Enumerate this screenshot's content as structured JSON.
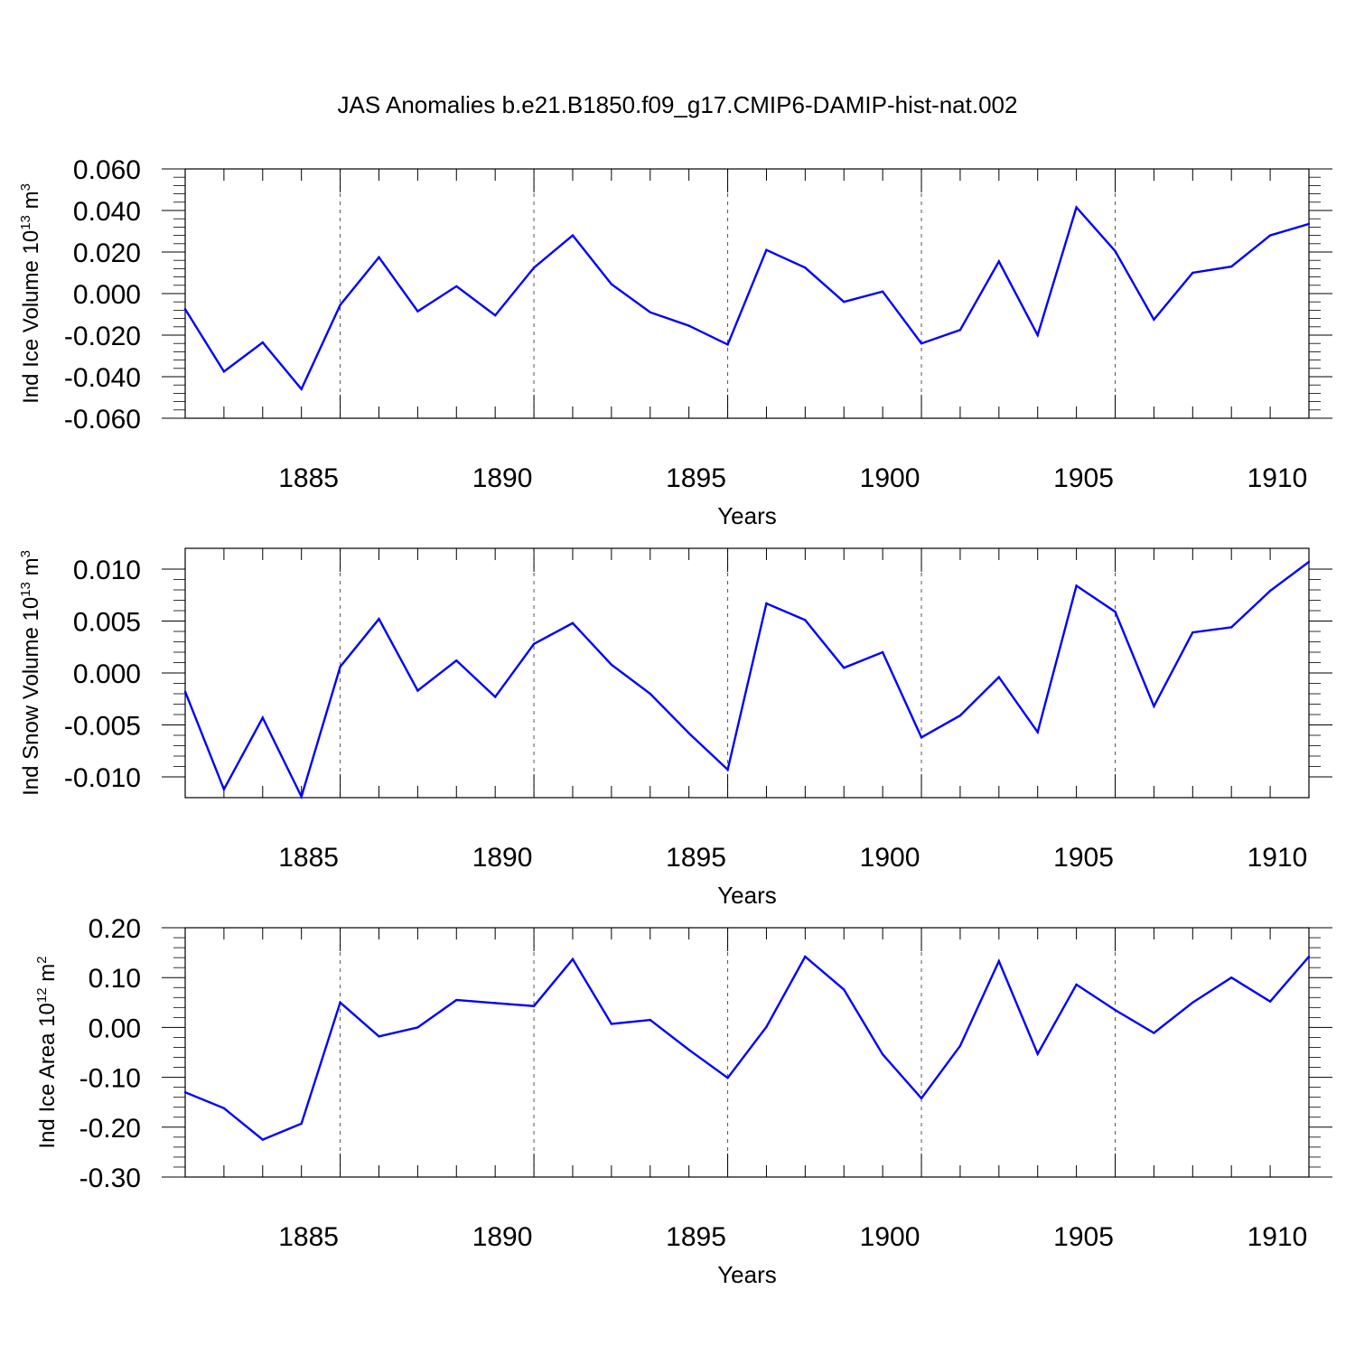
{
  "page_title": "JAS Anomalies b.e21.B1850.f09_g17.CMIP6-DAMIP-hist-nat.002",
  "line_color": "#0000ff",
  "chart_data": [
    {
      "type": "line",
      "id": "ice-volume",
      "xlabel": "Years",
      "ylabel": {
        "base": "Ind Ice Volume 10",
        "exp": "13",
        "unit": " m",
        "unit_exp": "3"
      },
      "xlim": [
        1881,
        1910
      ],
      "ylim": [
        -0.06,
        0.06
      ],
      "yticks": [
        -0.06,
        -0.04,
        -0.02,
        0.0,
        0.02,
        0.04,
        0.06
      ],
      "ytick_labels": [
        "-0.060",
        "-0.040",
        "-0.020",
        "0.000",
        "0.020",
        "0.040",
        "0.060"
      ],
      "xticks": [
        1885,
        1890,
        1895,
        1900,
        1905,
        1910
      ],
      "xtick_labels": [
        "1885",
        "1890",
        "1895",
        "1900",
        "1905",
        "1910"
      ],
      "grid": "vertical-dashed",
      "x": [
        1881,
        1882,
        1883,
        1884,
        1885,
        1886,
        1887,
        1888,
        1889,
        1890,
        1891,
        1892,
        1893,
        1894,
        1895,
        1896,
        1897,
        1898,
        1899,
        1900,
        1901,
        1902,
        1903,
        1904,
        1905,
        1906,
        1907,
        1908,
        1909,
        1910
      ],
      "values": [
        -0.0075,
        -0.0375,
        -0.0235,
        -0.046,
        -0.0055,
        0.0175,
        -0.0085,
        0.0035,
        -0.0105,
        0.0125,
        0.028,
        0.0045,
        -0.009,
        -0.0155,
        -0.0245,
        0.021,
        0.0125,
        -0.004,
        0.001,
        -0.024,
        -0.0175,
        0.0155,
        -0.02,
        0.0415,
        0.0205,
        -0.0125,
        0.01,
        0.013,
        0.028,
        0.0335
      ]
    },
    {
      "type": "line",
      "id": "snow-volume",
      "xlabel": "Years",
      "ylabel": {
        "base": "Ind Snow Volume 10",
        "exp": "13",
        "unit": " m",
        "unit_exp": "3"
      },
      "xlim": [
        1881,
        1910
      ],
      "ylim": [
        -0.012,
        0.012
      ],
      "yticks": [
        -0.01,
        -0.005,
        0.0,
        0.005,
        0.01
      ],
      "ytick_labels": [
        "-0.010",
        "-0.005",
        "0.000",
        "0.005",
        "0.010"
      ],
      "xticks": [
        1885,
        1890,
        1895,
        1900,
        1905,
        1910
      ],
      "xtick_labels": [
        "1885",
        "1890",
        "1895",
        "1900",
        "1905",
        "1910"
      ],
      "grid": "vertical-dashed",
      "x": [
        1881,
        1882,
        1883,
        1884,
        1885,
        1886,
        1887,
        1888,
        1889,
        1890,
        1891,
        1892,
        1893,
        1894,
        1895,
        1896,
        1897,
        1898,
        1899,
        1900,
        1901,
        1902,
        1903,
        1904,
        1905,
        1906,
        1907,
        1908,
        1909,
        1910
      ],
      "values": [
        -0.0018,
        -0.0112,
        -0.0043,
        -0.0119,
        0.0006,
        0.0052,
        -0.0017,
        0.0012,
        -0.0023,
        0.0028,
        0.0048,
        0.0008,
        -0.002,
        -0.0058,
        -0.0093,
        0.0067,
        0.0051,
        0.0005,
        0.002,
        -0.0062,
        -0.0041,
        -0.0004,
        -0.0057,
        0.0084,
        0.0059,
        -0.0032,
        0.0039,
        0.0044,
        0.0079,
        0.0107
      ]
    },
    {
      "type": "line",
      "id": "ice-area",
      "xlabel": "Years",
      "ylabel": {
        "base": "Ind Ice Area 10",
        "exp": "12",
        "unit": " m",
        "unit_exp": "2"
      },
      "xlim": [
        1881,
        1910
      ],
      "ylim": [
        -0.3,
        0.2
      ],
      "yticks": [
        -0.3,
        -0.2,
        -0.1,
        0.0,
        0.1,
        0.2
      ],
      "ytick_labels": [
        "-0.30",
        "-0.20",
        "-0.10",
        "0.00",
        "0.10",
        "0.20"
      ],
      "xticks": [
        1885,
        1890,
        1895,
        1900,
        1905,
        1910
      ],
      "xtick_labels": [
        "1885",
        "1890",
        "1895",
        "1900",
        "1905",
        "1910"
      ],
      "grid": "vertical-dashed",
      "x": [
        1881,
        1882,
        1883,
        1884,
        1885,
        1886,
        1887,
        1888,
        1889,
        1890,
        1891,
        1892,
        1893,
        1894,
        1895,
        1896,
        1897,
        1898,
        1899,
        1900,
        1901,
        1902,
        1903,
        1904,
        1905,
        1906,
        1907,
        1908,
        1909,
        1910
      ],
      "values": [
        -0.13,
        -0.162,
        -0.225,
        -0.193,
        0.05,
        -0.018,
        0.0,
        0.055,
        0.049,
        0.043,
        0.137,
        0.007,
        0.015,
        -0.045,
        -0.101,
        0.001,
        0.142,
        0.076,
        -0.054,
        -0.142,
        -0.037,
        0.133,
        -0.053,
        0.086,
        0.035,
        -0.011,
        0.05,
        0.1,
        0.052,
        0.142
      ]
    }
  ]
}
